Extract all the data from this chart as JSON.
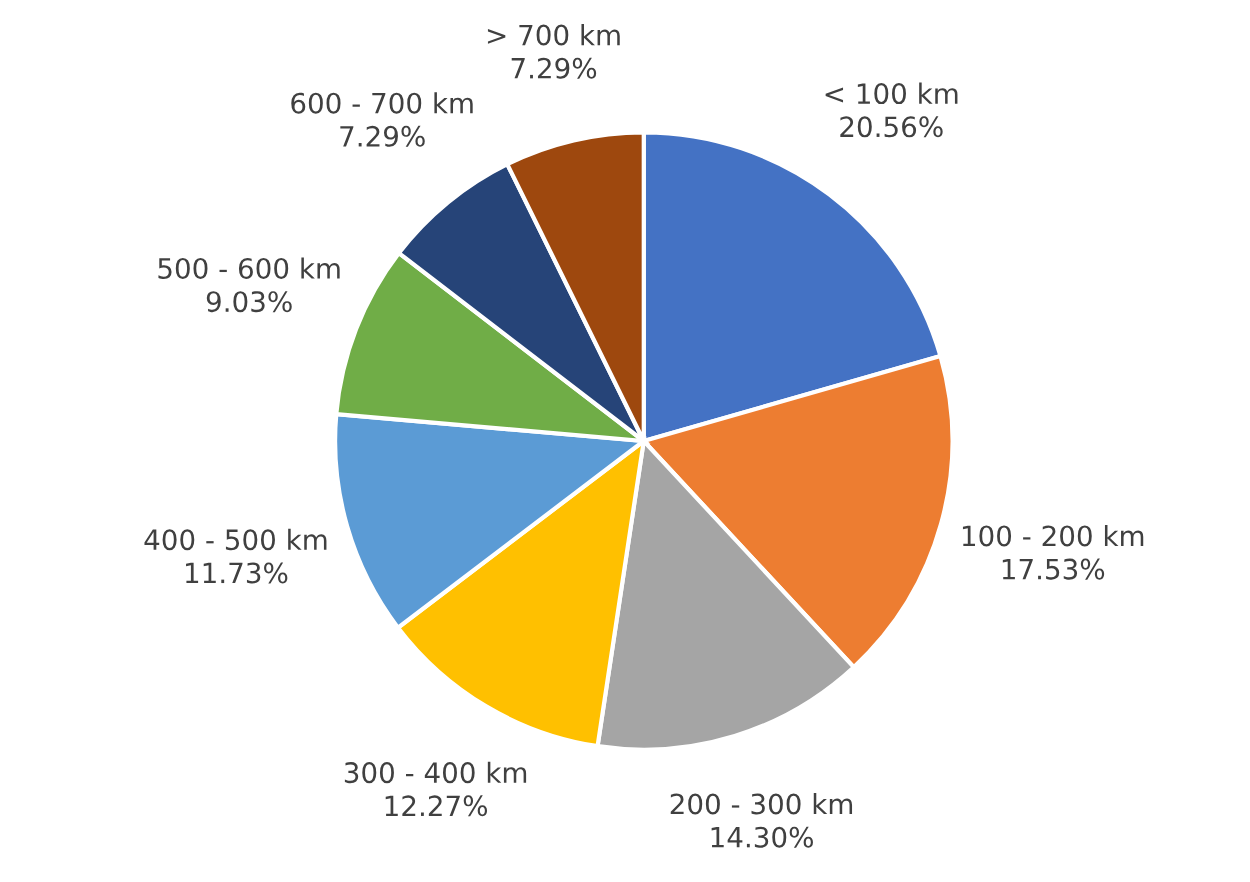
{
  "chart_data": {
    "type": "pie",
    "categories": [
      "< 100 km",
      "100 - 200 km",
      "200 - 300 km",
      "300 - 400 km",
      "400 - 500 km",
      "500 - 600 km",
      "600 - 700 km",
      "> 700 km"
    ],
    "values": [
      20.56,
      17.53,
      14.3,
      12.27,
      11.73,
      9.03,
      7.29,
      7.29
    ],
    "value_labels": [
      "20.56%",
      "17.53%",
      "14.30%",
      "12.27%",
      "11.73%",
      "9.03%",
      "7.29%",
      "7.29%"
    ],
    "colors": [
      "#4472c4",
      "#ed7d31",
      "#a5a5a5",
      "#ffc000",
      "#5b9bd5",
      "#70ad47",
      "#264478",
      "#9e480e"
    ],
    "legend": false
  }
}
